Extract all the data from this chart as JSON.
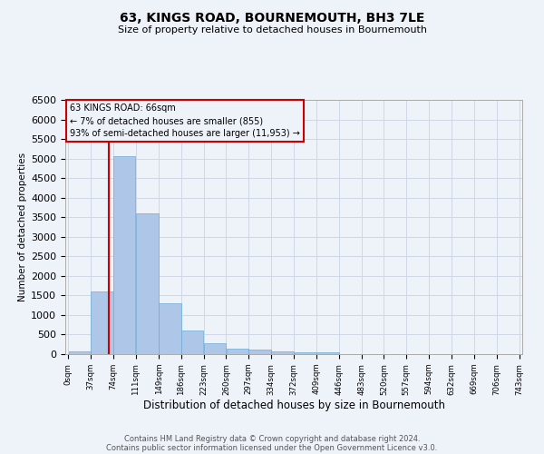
{
  "title": "63, KINGS ROAD, BOURNEMOUTH, BH3 7LE",
  "subtitle": "Size of property relative to detached houses in Bournemouth",
  "xlabel": "Distribution of detached houses by size in Bournemouth",
  "ylabel": "Number of detached properties",
  "footnote1": "Contains HM Land Registry data © Crown copyright and database right 2024.",
  "footnote2": "Contains public sector information licensed under the Open Government Licence v3.0.",
  "property_label": "63 KINGS ROAD: 66sqm",
  "annotation_line1": "← 7% of detached houses are smaller (855)",
  "annotation_line2": "93% of semi-detached houses are larger (11,953) →",
  "property_size_sqm": 66,
  "bar_left_edges": [
    0,
    37,
    74,
    111,
    149,
    186,
    223,
    260,
    297,
    334,
    372,
    409,
    446,
    483,
    520,
    557,
    594,
    632,
    669,
    706
  ],
  "bar_widths": [
    37,
    37,
    37,
    38,
    37,
    37,
    37,
    37,
    37,
    38,
    37,
    37,
    37,
    37,
    37,
    37,
    38,
    37,
    37,
    37
  ],
  "bar_heights": [
    60,
    1600,
    5050,
    3600,
    1300,
    610,
    290,
    150,
    120,
    75,
    50,
    55,
    0,
    0,
    0,
    0,
    0,
    0,
    0,
    0
  ],
  "tick_labels": [
    "0sqm",
    "37sqm",
    "74sqm",
    "111sqm",
    "149sqm",
    "186sqm",
    "223sqm",
    "260sqm",
    "297sqm",
    "334sqm",
    "372sqm",
    "409sqm",
    "446sqm",
    "483sqm",
    "520sqm",
    "557sqm",
    "594sqm",
    "632sqm",
    "669sqm",
    "706sqm",
    "743sqm"
  ],
  "bar_color": "#aec6e8",
  "bar_edge_color": "#6aacd6",
  "marker_line_color": "#cc0000",
  "annotation_box_edge_color": "#cc0000",
  "grid_color": "#d0d8e8",
  "background_color": "#eef2f9",
  "ylim": [
    0,
    6500
  ],
  "yticks": [
    0,
    500,
    1000,
    1500,
    2000,
    2500,
    3000,
    3500,
    4000,
    4500,
    5000,
    5500,
    6000,
    6500
  ]
}
